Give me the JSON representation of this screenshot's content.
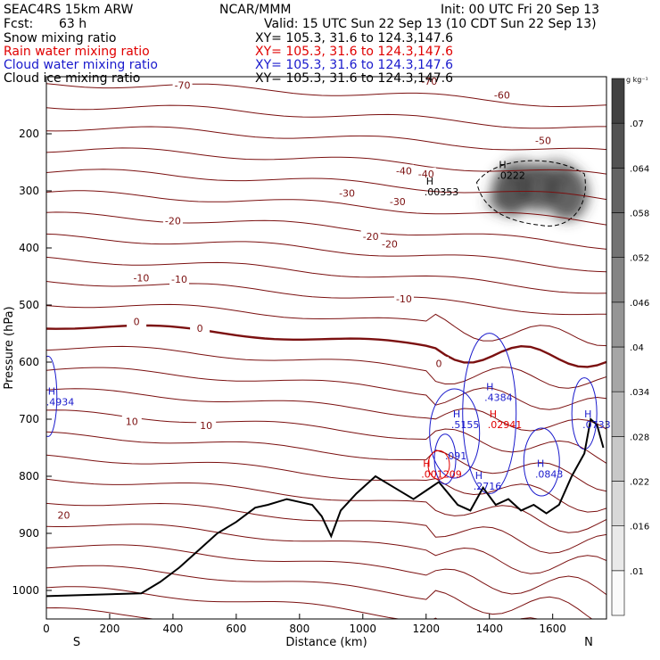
{
  "header": {
    "model": "SEAC4RS 15km ARW",
    "org": "NCAR/MMM",
    "init": "Init: 00 UTC Fri 20 Sep 13",
    "fcst_label": "Fcst:",
    "fcst_value": "63 h",
    "valid": "Valid: 15 UTC Sun 22 Sep 13 (10 CDT Sun 22 Sep 13)",
    "fields": [
      {
        "label": "Snow mixing ratio",
        "xy": "XY= 105.3, 31.6 to 124.3,147.6",
        "color": "#000000"
      },
      {
        "label": "Rain water mixing ratio",
        "xy": "XY= 105.3, 31.6 to 124.3,147.6",
        "color": "#e00000"
      },
      {
        "label": "Cloud water mixing ratio",
        "xy": "XY= 105.3, 31.6 to 124.3,147.6",
        "color": "#1a1acc"
      },
      {
        "label": "Cloud ice mixing ratio",
        "xy": "XY= 105.3, 31.6 to 124.3,147.6",
        "color": "#000000"
      }
    ]
  },
  "colors": {
    "temperature_contour": "#7b1010",
    "zero_isotherm": "#7b1010",
    "terrain": "#000000",
    "rain": "#e00000",
    "cloud_water": "#1a1acc",
    "snow_shade": "#555555"
  },
  "chart_data": {
    "type": "contour-cross-section",
    "xlabel": "Distance (km)",
    "ylabel": "Pressure (hPa)",
    "xlim": [
      0,
      1770
    ],
    "ylim_hpa": [
      1050,
      100
    ],
    "x_ticks": [
      0,
      200,
      400,
      600,
      800,
      1000,
      1200,
      1400,
      1600
    ],
    "y_ticks": [
      200,
      300,
      400,
      500,
      600,
      700,
      800,
      900,
      1000
    ],
    "y_scale": "linear",
    "end_labels": {
      "left": "S",
      "right": "N"
    },
    "colorbar": {
      "unit": "g kg⁻¹",
      "ticks": [
        ".01",
        ".016",
        ".022",
        ".028",
        ".034",
        ".04",
        ".046",
        ".052",
        ".058",
        ".064",
        ".07"
      ]
    },
    "temperature_labels": [
      {
        "text": "-70",
        "x": 430,
        "p": 115
      },
      {
        "text": "-70",
        "x": 1210,
        "p": 108
      },
      {
        "text": "-60",
        "x": 1440,
        "p": 132
      },
      {
        "text": "-50",
        "x": 1570,
        "p": 212
      },
      {
        "text": "-40",
        "x": 1130,
        "p": 265
      },
      {
        "text": "-40",
        "x": 1200,
        "p": 270
      },
      {
        "text": "-30",
        "x": 950,
        "p": 304
      },
      {
        "text": "-30",
        "x": 1110,
        "p": 319
      },
      {
        "text": "-20",
        "x": 400,
        "p": 352
      },
      {
        "text": "-20",
        "x": 1025,
        "p": 380
      },
      {
        "text": "-20",
        "x": 1085,
        "p": 393
      },
      {
        "text": "-10",
        "x": 300,
        "p": 452
      },
      {
        "text": "-10",
        "x": 420,
        "p": 455
      },
      {
        "text": "-10",
        "x": 1130,
        "p": 489
      },
      {
        "text": "0",
        "x": 285,
        "p": 529
      },
      {
        "text": "0",
        "x": 485,
        "p": 541
      },
      {
        "text": "0",
        "x": 1240,
        "p": 602
      },
      {
        "text": "10",
        "x": 270,
        "p": 704
      },
      {
        "text": "10",
        "x": 505,
        "p": 711
      },
      {
        "text": "20",
        "x": 55,
        "p": 868
      }
    ],
    "max_labels": [
      {
        "letter": "H",
        "value": ".0222",
        "x": 1430,
        "p": 263,
        "color": "#000000"
      },
      {
        "letter": "H",
        "value": ".00353",
        "x": 1200,
        "p": 292,
        "color": "#000000"
      },
      {
        "letter": "H",
        "value": ".4934",
        "x": 5,
        "p": 660,
        "color": "#1a1acc"
      },
      {
        "letter": "H",
        "value": ".4384",
        "x": 1390,
        "p": 652,
        "color": "#1a1acc"
      },
      {
        "letter": "H",
        "value": ".5155",
        "x": 1285,
        "p": 700,
        "color": "#1a1acc"
      },
      {
        "letter": "H",
        "value": ".0733",
        "x": 1700,
        "p": 700,
        "color": "#1a1acc"
      },
      {
        "letter": "H",
        "value": ".02941",
        "x": 1400,
        "p": 700,
        "color": "#e00000"
      },
      {
        "letter": "",
        "value": ".091",
        "x": 1265,
        "p": 755,
        "color": "#1a1acc"
      },
      {
        "letter": "H",
        "value": ".001209",
        "x": 1190,
        "p": 787,
        "color": "#e00000"
      },
      {
        "letter": "H",
        "value": ".2716",
        "x": 1355,
        "p": 808,
        "color": "#1a1acc"
      },
      {
        "letter": "H",
        "value": ".0843",
        "x": 1550,
        "p": 787,
        "color": "#1a1acc"
      }
    ],
    "terrain": {
      "x": [
        0,
        300,
        360,
        420,
        480,
        540,
        600,
        660,
        700,
        760,
        800,
        840,
        870,
        900,
        930,
        980,
        1040,
        1100,
        1160,
        1200,
        1240,
        1270,
        1300,
        1340,
        1380,
        1420,
        1460,
        1500,
        1540,
        1580,
        1620,
        1660,
        1700,
        1720,
        1740,
        1760
      ],
      "p": [
        1010,
        1005,
        985,
        960,
        930,
        900,
        880,
        855,
        850,
        840,
        845,
        850,
        870,
        905,
        860,
        830,
        800,
        820,
        840,
        825,
        810,
        830,
        850,
        860,
        820,
        850,
        840,
        860,
        850,
        865,
        850,
        800,
        760,
        700,
        710,
        750
      ]
    }
  }
}
